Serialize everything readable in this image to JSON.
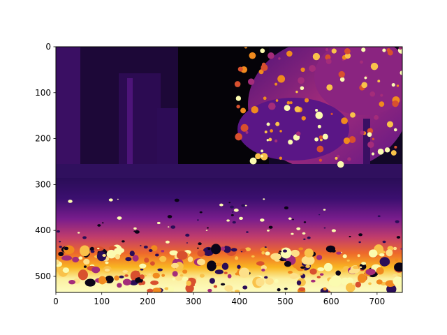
{
  "chart_data": {
    "type": "heatmap",
    "title": "",
    "xlabel": "",
    "ylabel": "",
    "xlim": [
      0,
      755
    ],
    "ylim": [
      535,
      0
    ],
    "colormap": "inferno",
    "grid": false,
    "legend": "none",
    "x_ticks": [
      "0",
      "100",
      "200",
      "300",
      "400",
      "500",
      "600",
      "700"
    ],
    "y_ticks": [
      "0",
      "100",
      "200",
      "300",
      "400",
      "500"
    ],
    "scene": "depth-style disparity map of a street scene: building and tree at top, road receding into distance, bright leaf-covered ground in foreground"
  },
  "colors": {
    "sky": "#050308",
    "far": "#2a0d57",
    "mid": "#6a178e",
    "mid_warm": "#b8326a",
    "near": "#f08a1e",
    "nearest": "#fbfbb0"
  }
}
